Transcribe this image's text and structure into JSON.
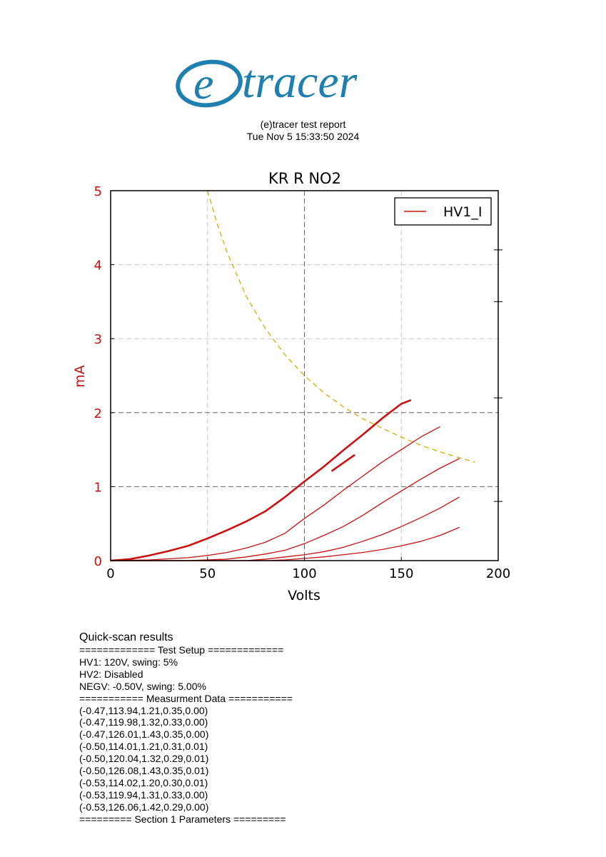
{
  "logo": {
    "text_e": "e",
    "text_rest": "tracer",
    "color": "#1f7fae"
  },
  "report": {
    "title": "(e)tracer test report",
    "date": "Tue Nov 5 15:33:50 2024"
  },
  "chart_data": {
    "type": "line",
    "title": "KR R NO2",
    "xlabel": "Volts",
    "ylabel": "mA",
    "xlim": [
      0,
      200
    ],
    "ylim": [
      0,
      5
    ],
    "xticks": [
      0,
      50,
      100,
      150,
      200
    ],
    "yticks": [
      0,
      1,
      2,
      3,
      4,
      5
    ],
    "grid": true,
    "legend_position": "top-right",
    "colors": {
      "curve": "#cc1111",
      "limit": "#ddaa00",
      "axis_label": "#cc1111",
      "grid": "#9a9a9a"
    },
    "series": [
      {
        "name": "HV1_I",
        "width": "bold",
        "points": [
          [
            0,
            0
          ],
          [
            10,
            0.02
          ],
          [
            20,
            0.07
          ],
          [
            30,
            0.13
          ],
          [
            40,
            0.2
          ],
          [
            50,
            0.3
          ],
          [
            60,
            0.41
          ],
          [
            70,
            0.53
          ],
          [
            80,
            0.67
          ],
          [
            90,
            0.86
          ],
          [
            100,
            1.07
          ],
          [
            110,
            1.27
          ],
          [
            120,
            1.49
          ],
          [
            130,
            1.7
          ],
          [
            140,
            1.92
          ],
          [
            150,
            2.12
          ],
          [
            155,
            2.17
          ]
        ]
      },
      {
        "points": [
          [
            0,
            0
          ],
          [
            20,
            0.01
          ],
          [
            40,
            0.04
          ],
          [
            50,
            0.07
          ],
          [
            60,
            0.11
          ],
          [
            70,
            0.17
          ],
          [
            80,
            0.25
          ],
          [
            90,
            0.37
          ],
          [
            100,
            0.57
          ],
          [
            110,
            0.75
          ],
          [
            120,
            0.95
          ],
          [
            130,
            1.14
          ],
          [
            140,
            1.33
          ],
          [
            150,
            1.5
          ],
          [
            160,
            1.67
          ],
          [
            170,
            1.81
          ]
        ]
      },
      {
        "points": [
          [
            0,
            0
          ],
          [
            40,
            0
          ],
          [
            60,
            0.02
          ],
          [
            70,
            0.05
          ],
          [
            80,
            0.09
          ],
          [
            90,
            0.14
          ],
          [
            100,
            0.23
          ],
          [
            110,
            0.34
          ],
          [
            120,
            0.46
          ],
          [
            130,
            0.61
          ],
          [
            140,
            0.78
          ],
          [
            150,
            0.94
          ],
          [
            160,
            1.1
          ],
          [
            170,
            1.25
          ],
          [
            180,
            1.38
          ]
        ]
      },
      {
        "points": [
          [
            0,
            0
          ],
          [
            70,
            0
          ],
          [
            80,
            0.02
          ],
          [
            90,
            0.05
          ],
          [
            100,
            0.08
          ],
          [
            110,
            0.12
          ],
          [
            120,
            0.18
          ],
          [
            130,
            0.26
          ],
          [
            140,
            0.35
          ],
          [
            150,
            0.46
          ],
          [
            160,
            0.58
          ],
          [
            170,
            0.71
          ],
          [
            180,
            0.86
          ]
        ]
      },
      {
        "points": [
          [
            0,
            0
          ],
          [
            80,
            0
          ],
          [
            90,
            0.01
          ],
          [
            100,
            0.03
          ],
          [
            110,
            0.05
          ],
          [
            120,
            0.08
          ],
          [
            130,
            0.11
          ],
          [
            140,
            0.15
          ],
          [
            150,
            0.2
          ],
          [
            160,
            0.26
          ],
          [
            170,
            0.34
          ],
          [
            180,
            0.45
          ]
        ]
      },
      {
        "width": "bold",
        "points": [
          [
            114,
            1.21
          ],
          [
            126,
            1.43
          ]
        ]
      }
    ],
    "power_limit_curve": {
      "style": "dashed",
      "points": [
        [
          50,
          5
        ],
        [
          55,
          4.55
        ],
        [
          60,
          4.17
        ],
        [
          70,
          3.57
        ],
        [
          80,
          3.13
        ],
        [
          90,
          2.78
        ],
        [
          100,
          2.5
        ],
        [
          110,
          2.27
        ],
        [
          120,
          2.08
        ],
        [
          130,
          1.92
        ],
        [
          140,
          1.79
        ],
        [
          150,
          1.67
        ],
        [
          160,
          1.56
        ],
        [
          170,
          1.47
        ],
        [
          180,
          1.39
        ],
        [
          188,
          1.33
        ]
      ]
    }
  },
  "results": {
    "heading": "Quick-scan results",
    "lines": [
      "============= Test Setup =============",
      "HV1: 120V, swing: 5%",
      "HV2: Disabled",
      "NEGV: -0.50V, swing: 5.00%",
      "=========== Measurment Data ===========",
      "(-0.47,113.94,1.21,0.35,0.00)",
      "(-0.47,119.98,1.32,0.33,0.00)",
      "(-0.47,126.01,1.43,0.35,0.00)",
      "(-0.50,114.01,1.21,0.31,0.01)",
      "(-0.50,120.04,1.32,0.29,0.01)",
      "(-0.50,126.08,1.43,0.35,0.01)",
      "(-0.53,114.02,1.20,0.30,0.01)",
      "(-0.53,119.94,1.31,0.33,0.00)",
      "(-0.53,126.06,1.42,0.29,0.00)",
      "========= Section 1 Parameters ========="
    ]
  }
}
